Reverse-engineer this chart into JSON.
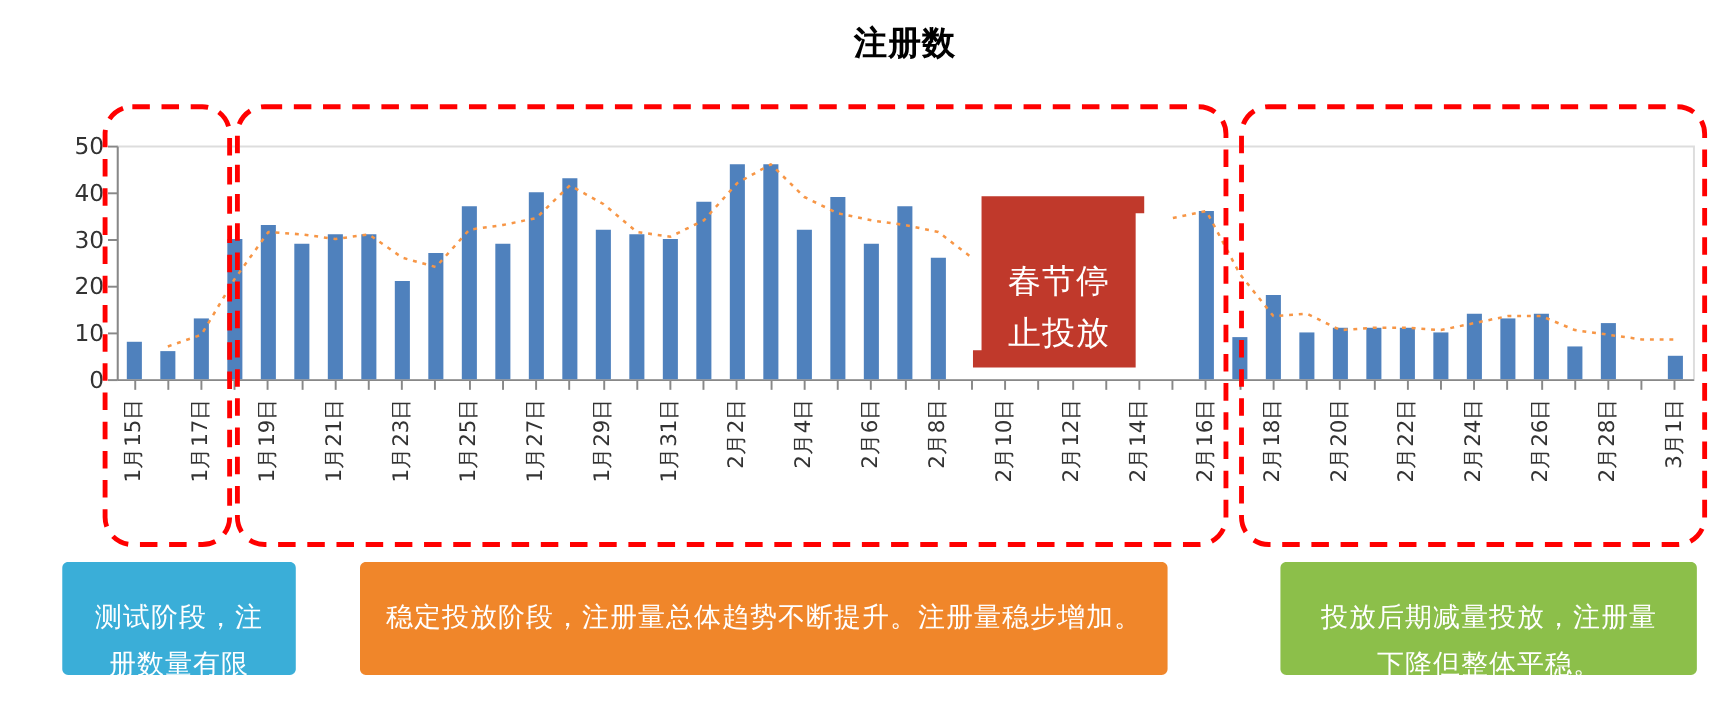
{
  "chart_data": {
    "type": "bar",
    "title": "注册数",
    "categories": [
      "1月15日",
      null,
      "1月17日",
      null,
      "1月19日",
      null,
      "1月21日",
      null,
      "1月23日",
      null,
      "1月25日",
      null,
      "1月27日",
      null,
      "1月29日",
      null,
      "1月31日",
      null,
      "2月2日",
      null,
      "2月4日",
      null,
      "2月6日",
      null,
      "2月8日",
      null,
      "2月10日",
      null,
      "2月12日",
      null,
      "2月14日",
      null,
      "2月16日",
      null,
      "2月18日",
      null,
      "2月20日",
      null,
      "2月22日",
      null,
      "2月24日",
      null,
      "2月26日",
      null,
      "2月28日",
      null,
      "3月1日"
    ],
    "series": [
      {
        "color": "#4f81bd",
        "values": [
          8,
          6,
          13,
          30,
          33,
          29,
          31,
          31,
          21,
          27,
          37,
          29,
          40,
          43,
          32,
          31,
          30,
          38,
          46,
          46,
          32,
          39,
          29,
          37,
          26,
          null,
          null,
          null,
          null,
          null,
          null,
          null,
          36,
          9,
          18,
          10,
          11,
          11,
          11,
          10,
          14,
          13,
          14,
          7,
          12,
          null,
          5
        ]
      },
      {
        "type": "line",
        "color": "#f79646",
        "line_style": "dotted",
        "marker": "none",
        "values": [
          null,
          7,
          9.5,
          21.5,
          31.5,
          31,
          30,
          31,
          26,
          24,
          32,
          33,
          34.5,
          41.5,
          37.5,
          31.5,
          30.5,
          34,
          42,
          46,
          39,
          35.5,
          34,
          33,
          31.5,
          26,
          null,
          null,
          null,
          null,
          null,
          34.5,
          36,
          22.5,
          13.5,
          14,
          10.5,
          11,
          11,
          10.5,
          12,
          13.5,
          13.5,
          10.5,
          9.5,
          8.5,
          8.5
        ]
      }
    ],
    "ylim": [
      0,
      50
    ],
    "yticks": [
      0,
      10,
      20,
      30,
      40,
      50
    ],
    "grid": false,
    "annotations": [
      "春节停止投放",
      "测试阶段，注册数量有限",
      "稳定投放阶段，注册量总体趋势不断提升。注册量稳步增加。",
      "投放后期减量投放，注册量下降但整体平稳。"
    ]
  }
}
